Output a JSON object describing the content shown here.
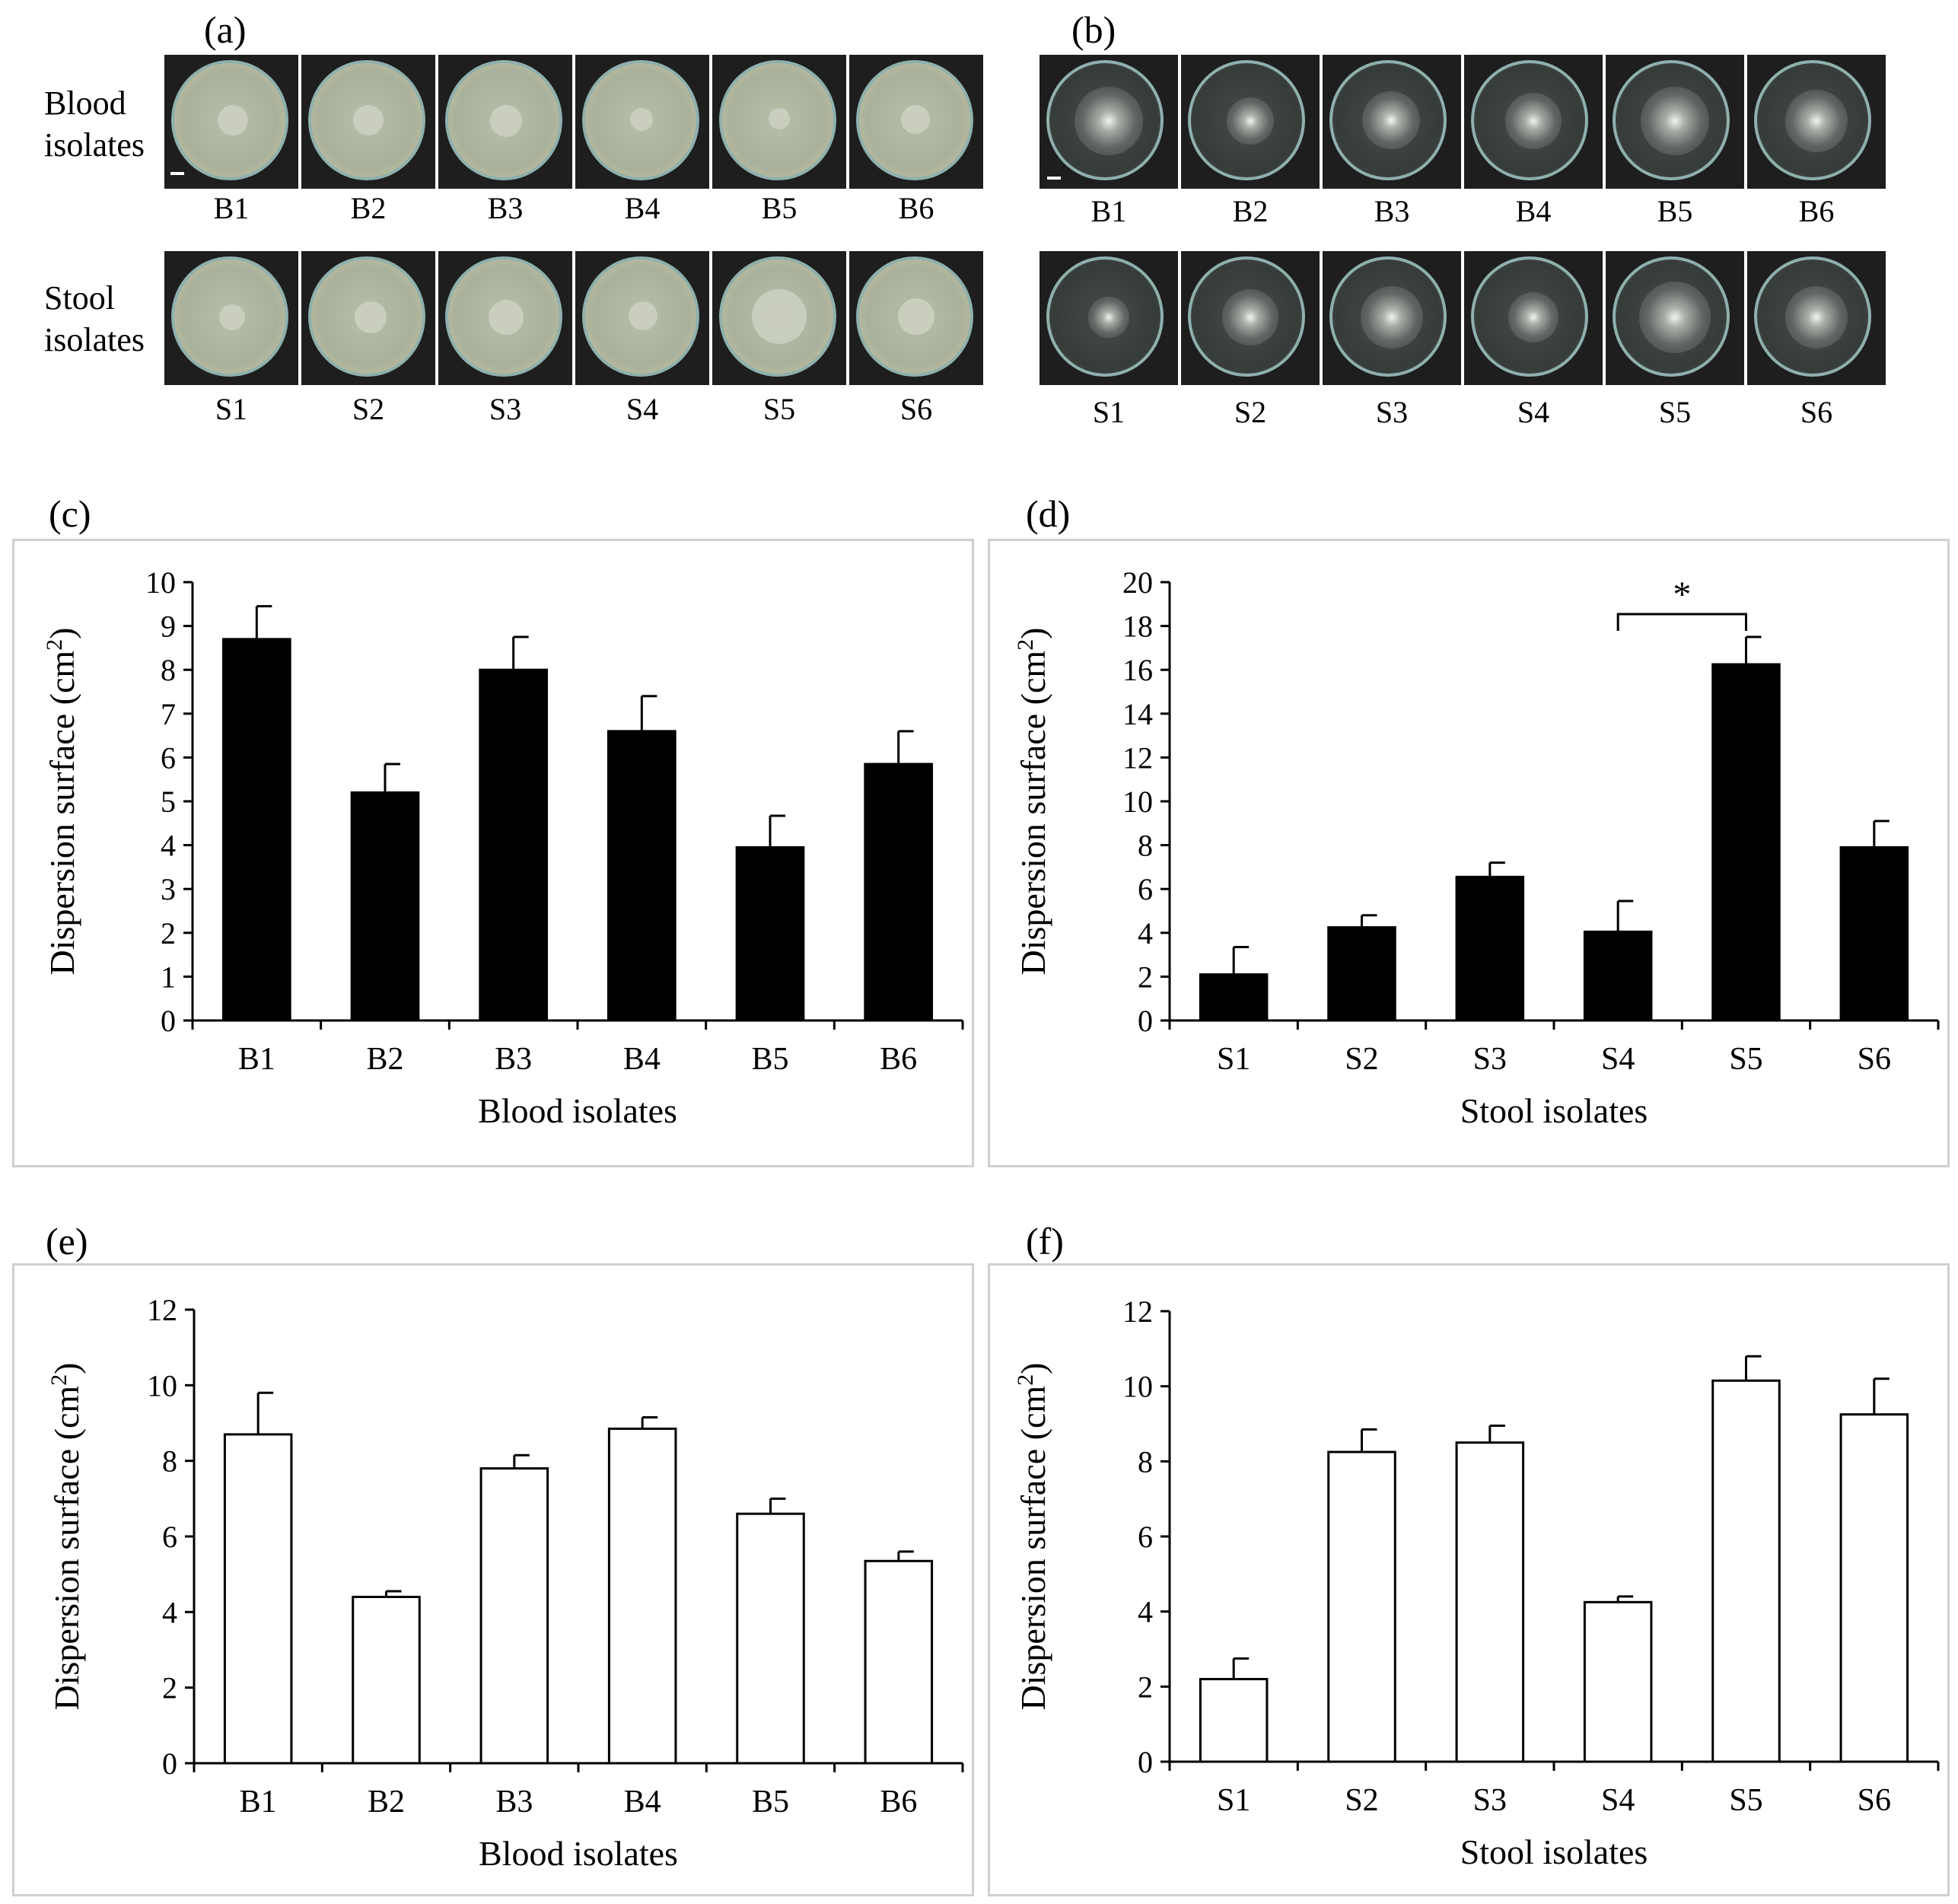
{
  "photo_panels": {
    "a": {
      "label": "(a)",
      "row_labels": [
        [
          "Blood",
          "isolates"
        ],
        [
          "Stool",
          "isolates"
        ]
      ],
      "top_labels": [
        "B1",
        "B2",
        "B3",
        "B4",
        "B5",
        "B6"
      ],
      "bottom_labels": [
        "S1",
        "S2",
        "S3",
        "S4",
        "S5",
        "S6"
      ]
    },
    "b": {
      "label": "(b)",
      "top_labels": [
        "B1",
        "B2",
        "B3",
        "B4",
        "B5",
        "B6"
      ],
      "bottom_labels": [
        "S1",
        "S2",
        "S3",
        "S4",
        "S5",
        "S6"
      ]
    }
  },
  "chart_data": [
    {
      "panel": "(c)",
      "type": "bar",
      "fill": "#000000",
      "categories": [
        "B1",
        "B2",
        "B3",
        "B4",
        "B5",
        "B6"
      ],
      "values": [
        8.7,
        5.2,
        8.0,
        6.6,
        3.95,
        5.85
      ],
      "errors": [
        0.75,
        0.65,
        0.75,
        0.8,
        0.72,
        0.75
      ],
      "ylim": [
        0,
        10
      ],
      "yticks": [
        0,
        1,
        2,
        3,
        4,
        5,
        6,
        7,
        8,
        9,
        10
      ],
      "ylabel": "Dispersion surface (cm",
      "ylabel_sup": "2",
      "ylabel_end": ")",
      "xlabel": "Blood isolates"
    },
    {
      "panel": "(d)",
      "type": "bar",
      "fill": "#000000",
      "categories": [
        "S1",
        "S2",
        "S3",
        "S4",
        "S5",
        "S6"
      ],
      "values": [
        2.1,
        4.25,
        6.55,
        4.05,
        16.25,
        7.9
      ],
      "errors": [
        1.25,
        0.55,
        0.65,
        1.4,
        1.25,
        1.2
      ],
      "ylim": [
        0,
        20
      ],
      "yticks": [
        0,
        2,
        4,
        6,
        8,
        10,
        12,
        14,
        16,
        18,
        20
      ],
      "ylabel": "Dispersion surface (cm",
      "ylabel_sup": "2",
      "ylabel_end": ")",
      "xlabel": "Stool isolates",
      "significance": {
        "from": "S4",
        "to": "S5",
        "label": "*"
      }
    },
    {
      "panel": "(e)",
      "type": "bar",
      "fill": "#ffffff",
      "categories": [
        "B1",
        "B2",
        "B3",
        "B4",
        "B5",
        "B6"
      ],
      "values": [
        8.7,
        4.4,
        7.8,
        8.85,
        6.6,
        5.35
      ],
      "errors": [
        1.1,
        0.15,
        0.35,
        0.3,
        0.4,
        0.25
      ],
      "ylim": [
        0,
        12
      ],
      "yticks": [
        0,
        2,
        4,
        6,
        8,
        10,
        12
      ],
      "ylabel": "Dispersion surface (cm",
      "ylabel_sup": "2",
      "ylabel_end": ")",
      "xlabel": "Blood isolates"
    },
    {
      "panel": "(f)",
      "type": "bar",
      "fill": "#ffffff",
      "categories": [
        "S1",
        "S2",
        "S3",
        "S4",
        "S5",
        "S6"
      ],
      "values": [
        2.2,
        8.25,
        8.5,
        4.25,
        10.15,
        9.25
      ],
      "errors": [
        0.55,
        0.6,
        0.45,
        0.15,
        0.65,
        0.95
      ],
      "ylim": [
        0,
        12
      ],
      "yticks": [
        0,
        2,
        4,
        6,
        8,
        10,
        12
      ],
      "ylabel": "Dispersion surface (cm",
      "ylabel_sup": "2",
      "ylabel_end": ")",
      "xlabel": "Stool isolates"
    }
  ]
}
